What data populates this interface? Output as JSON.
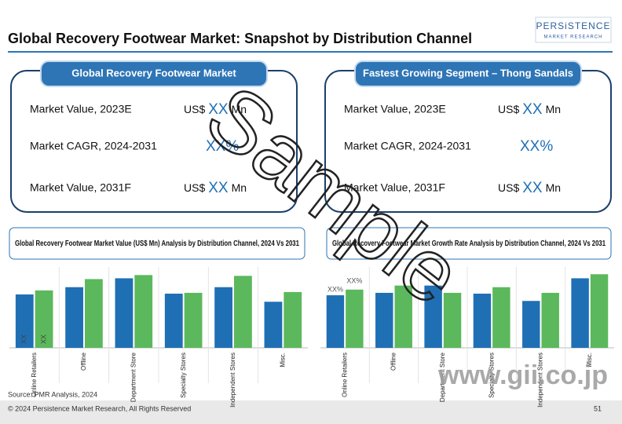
{
  "header": {
    "title": "Global Recovery Footwear Market: Snapshot by Distribution Channel",
    "logo": "PERSiSTENCE",
    "logo_sub": "MARKET RESEARCH"
  },
  "snapshots": [
    {
      "title": "Global Recovery Footwear Market",
      "rows": [
        {
          "label": "Market Value, 2023E",
          "prefix": "US$",
          "highlight": "XX",
          "suffix": "Mn"
        },
        {
          "label": "Market CAGR, 2024-2031",
          "highlight": "XX%"
        },
        {
          "label": "Market Value, 2031F",
          "prefix": "US$",
          "highlight": "XX",
          "suffix": "Mn"
        }
      ]
    },
    {
      "title": "Fastest Growing Segment – Thong Sandals",
      "rows": [
        {
          "label": "Market Value, 2023E",
          "prefix": "US$",
          "highlight": "XX",
          "suffix": "Mn"
        },
        {
          "label": "Market CAGR, 2024-2031",
          "highlight": "XX%"
        },
        {
          "label": "Market Value, 2031F",
          "prefix": "US$",
          "highlight": "XX",
          "suffix": "Mn"
        }
      ]
    }
  ],
  "chart_data": [
    {
      "type": "bar",
      "title": "Global Recovery Footwear Market Value (US$ Mn) Analysis by Distribution Channel, 2024 Vs 2031",
      "categories": [
        "Online Retailers",
        "Offline",
        "Department Store",
        "Specialty Stores",
        "Independent Stores",
        "Misc."
      ],
      "series": [
        {
          "color": "#1f6fb5",
          "values": [
            66,
            75,
            86,
            67,
            75,
            57
          ]
        },
        {
          "color": "#5cb85c",
          "values": [
            71,
            85,
            90,
            68,
            89,
            69
          ]
        }
      ],
      "ylim": [
        0,
        100
      ],
      "annotations": [
        "XX",
        "XX"
      ]
    },
    {
      "type": "bar",
      "title": "Global Recovery Footwear Market Growth Rate Analysis by Distribution Channel, 2024 Vs 2031",
      "categories": [
        "Online Retailers",
        "Offline",
        "Department Store",
        "Specialty Stores",
        "Independent Stores",
        "Misc."
      ],
      "series": [
        {
          "color": "#1f6fb5",
          "values": [
            65,
            68,
            77,
            67,
            58,
            86
          ]
        },
        {
          "color": "#5cb85c",
          "values": [
            72,
            77,
            68,
            75,
            68,
            91
          ]
        }
      ],
      "ylim": [
        0,
        100
      ],
      "annotations": [
        "XX%",
        "XX%"
      ]
    }
  ],
  "source": "Source: PMR Analysis, 2024",
  "footer": {
    "copyright": "© 2024 Persistence Market Research, All Rights Reserved",
    "page": "51"
  },
  "watermark": "Sample",
  "watermark2": "www.gii.co.jp"
}
